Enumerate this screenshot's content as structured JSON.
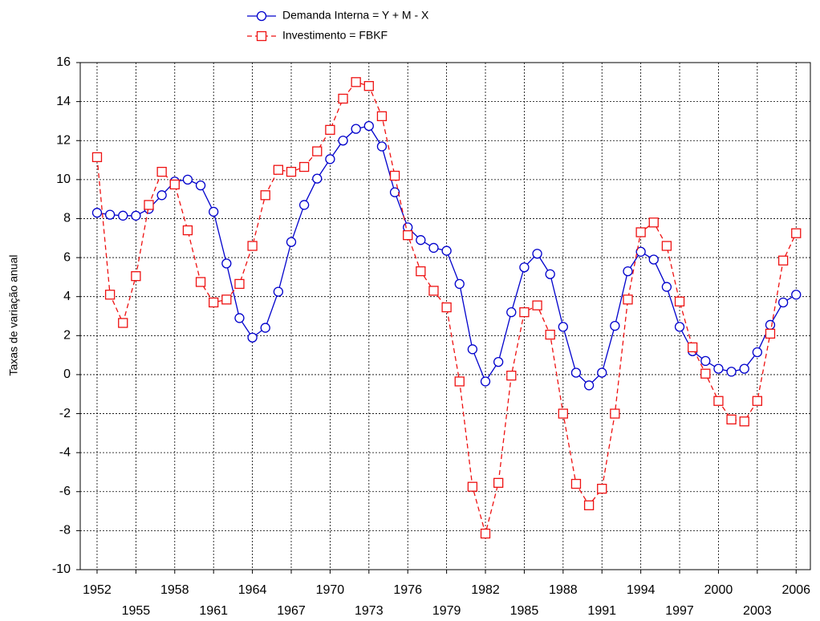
{
  "chart_data": {
    "type": "line",
    "y_label": "Taxas de variação anual",
    "x": [
      1952,
      1953,
      1954,
      1955,
      1956,
      1957,
      1958,
      1959,
      1960,
      1961,
      1962,
      1963,
      1964,
      1965,
      1966,
      1967,
      1968,
      1969,
      1970,
      1971,
      1972,
      1973,
      1974,
      1975,
      1976,
      1977,
      1978,
      1979,
      1980,
      1981,
      1982,
      1983,
      1984,
      1985,
      1986,
      1987,
      1988,
      1989,
      1990,
      1991,
      1992,
      1993,
      1994,
      1995,
      1996,
      1997,
      1998,
      1999,
      2000,
      2001,
      2002,
      2003,
      2004,
      2005,
      2006
    ],
    "series": [
      {
        "name": "Demanda Interna = Y + M - X",
        "color": "#0000cc",
        "marker": "circle",
        "dashed": false,
        "values": [
          8.3,
          8.2,
          8.15,
          8.15,
          8.5,
          9.2,
          9.9,
          10.0,
          9.7,
          8.35,
          5.7,
          2.9,
          1.9,
          2.4,
          4.25,
          6.8,
          8.7,
          10.05,
          11.05,
          12.0,
          12.6,
          12.75,
          11.7,
          9.35,
          7.55,
          6.9,
          6.5,
          6.35,
          4.65,
          1.3,
          -0.35,
          0.65,
          3.2,
          5.5,
          6.2,
          5.15,
          2.45,
          0.1,
          -0.55,
          0.1,
          2.5,
          5.3,
          6.3,
          5.9,
          4.5,
          2.45,
          1.2,
          0.7,
          0.3,
          0.15,
          0.3,
          1.15,
          2.55,
          3.7,
          4.1
        ]
      },
      {
        "name": "Investimento = FBKF",
        "color": "#ee1111",
        "marker": "square",
        "dashed": true,
        "values": [
          11.15,
          4.1,
          2.65,
          5.05,
          8.7,
          10.4,
          9.75,
          7.4,
          4.75,
          3.7,
          3.85,
          4.65,
          6.6,
          9.2,
          10.5,
          10.4,
          10.65,
          11.45,
          12.55,
          14.15,
          15.0,
          14.8,
          13.25,
          10.2,
          7.15,
          5.3,
          4.3,
          3.45,
          -0.35,
          -5.75,
          -8.15,
          -5.55,
          -0.05,
          3.2,
          3.55,
          2.05,
          -2.0,
          -5.6,
          -6.7,
          -5.85,
          -2.0,
          3.85,
          7.3,
          7.8,
          6.6,
          3.75,
          1.4,
          0.05,
          -1.35,
          -2.3,
          -2.4,
          -1.35,
          2.1,
          5.85,
          7.25
        ]
      }
    ],
    "xlim": [
      1950.7,
      2007.1
    ],
    "xticks": [
      1952,
      1955,
      1958,
      1961,
      1964,
      1967,
      1970,
      1973,
      1976,
      1979,
      1982,
      1985,
      1988,
      1991,
      1994,
      1997,
      2000,
      2003,
      2006
    ],
    "ylim": [
      -10,
      16
    ],
    "yticks": [
      -10,
      -8,
      -6,
      -4,
      -2,
      0,
      2,
      4,
      6,
      8,
      10,
      12,
      14,
      16
    ],
    "grid": true
  }
}
